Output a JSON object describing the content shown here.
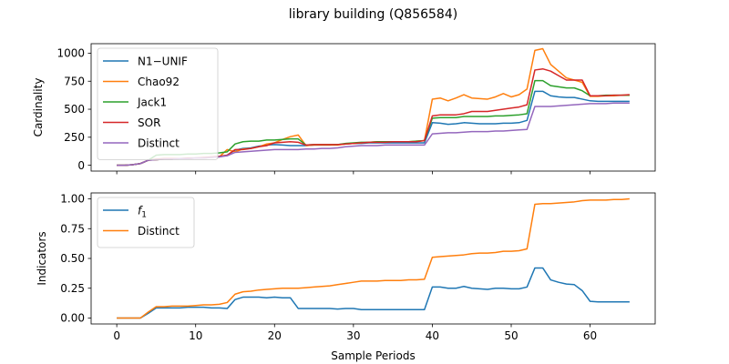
{
  "title": "library building (Q856584)",
  "chart_data": [
    {
      "type": "line",
      "ylabel": "Cardinality",
      "xlabel": "",
      "xlim": [
        -3.25,
        68.25
      ],
      "ylim": [
        -52,
        1085
      ],
      "xticks": [
        0,
        10,
        20,
        30,
        40,
        50,
        60
      ],
      "yticks": [
        0,
        250,
        500,
        750,
        1000
      ],
      "ytick_labels": [
        "0",
        "250",
        "500",
        "750",
        "1000"
      ],
      "legend_position": "upper left",
      "series": [
        {
          "name": "N1−UNIF",
          "color": "#1f77b4",
          "values": [
            0,
            0,
            5,
            15,
            45,
            50,
            55,
            55,
            60,
            60,
            65,
            65,
            70,
            75,
            90,
            135,
            150,
            155,
            170,
            180,
            185,
            180,
            175,
            175,
            175,
            180,
            180,
            180,
            185,
            190,
            195,
            195,
            200,
            200,
            200,
            200,
            200,
            200,
            200,
            200,
            380,
            375,
            365,
            370,
            380,
            375,
            370,
            370,
            370,
            375,
            375,
            380,
            400,
            660,
            660,
            620,
            610,
            605,
            605,
            590,
            575,
            570,
            570,
            570,
            570,
            570
          ]
        },
        {
          "name": "Chao92",
          "color": "#ff7f0e",
          "values": [
            0,
            0,
            5,
            15,
            45,
            50,
            55,
            55,
            60,
            60,
            65,
            65,
            70,
            75,
            140,
            120,
            145,
            150,
            165,
            190,
            200,
            230,
            255,
            270,
            175,
            180,
            180,
            180,
            180,
            190,
            195,
            200,
            205,
            210,
            210,
            210,
            210,
            210,
            215,
            220,
            590,
            600,
            575,
            600,
            630,
            600,
            595,
            590,
            610,
            640,
            610,
            630,
            680,
            1025,
            1040,
            900,
            840,
            780,
            760,
            740,
            615,
            615,
            620,
            620,
            625,
            625
          ]
        },
        {
          "name": "Jack1",
          "color": "#2ca02c",
          "values": [
            0,
            0,
            5,
            15,
            45,
            90,
            95,
            95,
            95,
            100,
            100,
            105,
            105,
            110,
            120,
            190,
            210,
            215,
            215,
            225,
            225,
            230,
            235,
            235,
            180,
            185,
            185,
            185,
            185,
            195,
            200,
            205,
            205,
            210,
            210,
            210,
            210,
            210,
            215,
            220,
            420,
            425,
            425,
            425,
            435,
            435,
            435,
            435,
            440,
            440,
            445,
            450,
            460,
            755,
            755,
            710,
            700,
            690,
            690,
            665,
            620,
            620,
            625,
            625,
            625,
            625
          ]
        },
        {
          "name": "SOR",
          "color": "#d62728",
          "values": [
            0,
            0,
            5,
            15,
            45,
            55,
            60,
            60,
            60,
            65,
            65,
            70,
            75,
            80,
            90,
            140,
            140,
            150,
            165,
            175,
            200,
            205,
            210,
            205,
            180,
            185,
            185,
            185,
            185,
            190,
            195,
            200,
            205,
            205,
            205,
            210,
            210,
            210,
            210,
            220,
            440,
            450,
            450,
            450,
            460,
            480,
            480,
            480,
            490,
            500,
            510,
            520,
            540,
            850,
            860,
            840,
            800,
            760,
            760,
            760,
            620,
            620,
            620,
            625,
            625,
            630
          ]
        },
        {
          "name": "Distinct",
          "color": "#9467bd",
          "values": [
            0,
            0,
            5,
            15,
            45,
            50,
            55,
            55,
            60,
            60,
            65,
            65,
            70,
            75,
            85,
            115,
            120,
            125,
            130,
            135,
            140,
            140,
            140,
            140,
            145,
            145,
            150,
            150,
            155,
            165,
            170,
            175,
            175,
            175,
            180,
            180,
            180,
            180,
            180,
            180,
            280,
            285,
            290,
            290,
            295,
            300,
            300,
            300,
            305,
            305,
            310,
            315,
            320,
            525,
            525,
            525,
            530,
            535,
            540,
            545,
            550,
            550,
            550,
            555,
            555,
            555
          ]
        }
      ]
    },
    {
      "type": "line",
      "ylabel": "Indicators",
      "xlabel": "Sample Periods",
      "xlim": [
        -3.25,
        68.25
      ],
      "ylim": [
        -0.05,
        1.05
      ],
      "xticks": [
        0,
        10,
        20,
        30,
        40,
        50,
        60
      ],
      "yticks": [
        0,
        0.25,
        0.5,
        0.75,
        1.0
      ],
      "ytick_labels": [
        "0.00",
        "0.25",
        "0.50",
        "0.75",
        "1.00"
      ],
      "xtick_labels": [
        "0",
        "10",
        "20",
        "30",
        "40",
        "50",
        "60"
      ],
      "legend_position": "upper left",
      "series": [
        {
          "name": "f1",
          "color": "#1f77b4",
          "values": [
            0,
            0,
            0,
            0,
            0.04,
            0.085,
            0.085,
            0.085,
            0.085,
            0.09,
            0.09,
            0.09,
            0.085,
            0.085,
            0.08,
            0.155,
            0.175,
            0.175,
            0.175,
            0.17,
            0.175,
            0.17,
            0.17,
            0.08,
            0.08,
            0.08,
            0.08,
            0.08,
            0.075,
            0.08,
            0.08,
            0.07,
            0.07,
            0.07,
            0.07,
            0.07,
            0.07,
            0.07,
            0.07,
            0.07,
            0.26,
            0.26,
            0.25,
            0.25,
            0.265,
            0.25,
            0.245,
            0.24,
            0.25,
            0.25,
            0.245,
            0.245,
            0.26,
            0.42,
            0.42,
            0.32,
            0.3,
            0.285,
            0.28,
            0.23,
            0.14,
            0.135,
            0.135,
            0.135,
            0.135,
            0.135
          ]
        },
        {
          "name": "Distinct",
          "color": "#ff7f0e",
          "values": [
            0,
            0,
            0,
            0,
            0.05,
            0.095,
            0.095,
            0.1,
            0.1,
            0.1,
            0.105,
            0.11,
            0.11,
            0.115,
            0.13,
            0.2,
            0.22,
            0.225,
            0.235,
            0.24,
            0.245,
            0.25,
            0.25,
            0.25,
            0.255,
            0.26,
            0.265,
            0.27,
            0.28,
            0.29,
            0.3,
            0.31,
            0.31,
            0.31,
            0.315,
            0.315,
            0.315,
            0.32,
            0.32,
            0.325,
            0.51,
            0.515,
            0.52,
            0.525,
            0.53,
            0.54,
            0.545,
            0.545,
            0.55,
            0.56,
            0.56,
            0.565,
            0.58,
            0.955,
            0.96,
            0.96,
            0.965,
            0.97,
            0.975,
            0.985,
            0.99,
            0.99,
            0.99,
            0.995,
            0.995,
            1.0
          ]
        }
      ]
    }
  ]
}
